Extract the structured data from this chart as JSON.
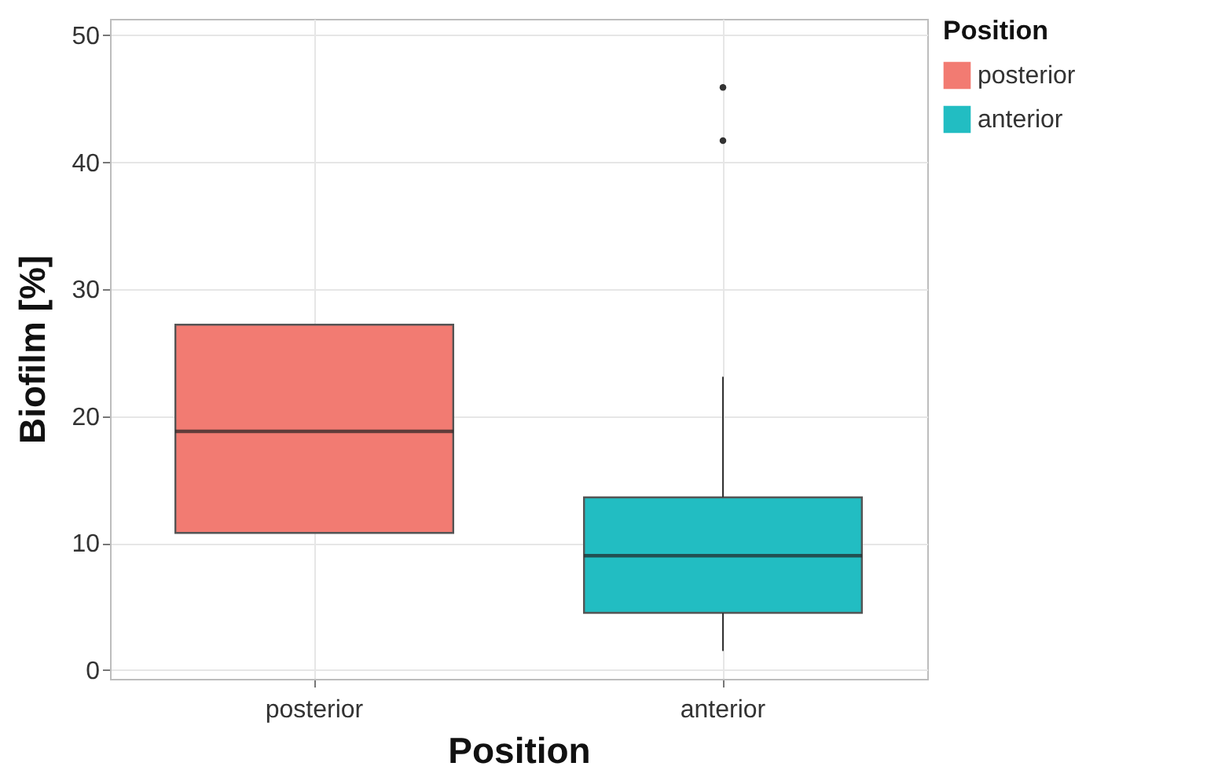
{
  "chart_data": {
    "type": "box",
    "xlabel": "Position",
    "ylabel": "Biofilm [%]",
    "legend_title": "Position",
    "legend": "right",
    "grid": true,
    "categories": [
      "posterior",
      "anterior"
    ],
    "series": [
      {
        "name": "posterior",
        "color": "#f27b72",
        "boxes": [
          {
            "low": 10.8,
            "q1": 10.8,
            "median": 18.8,
            "q3": 27.2,
            "high": 27.2
          },
          null
        ]
      },
      {
        "name": "anterior",
        "color": "#22bdc2",
        "boxes": [
          null,
          {
            "low": 1.5,
            "q1": 4.5,
            "median": 9.0,
            "q3": 13.6,
            "high": 23.1,
            "outliers": [
              41.7,
              45.9
            ]
          }
        ]
      }
    ],
    "ylim": [
      -0.7,
      51.3
    ],
    "yticks": [
      0,
      10,
      20,
      30,
      40,
      50
    ]
  }
}
